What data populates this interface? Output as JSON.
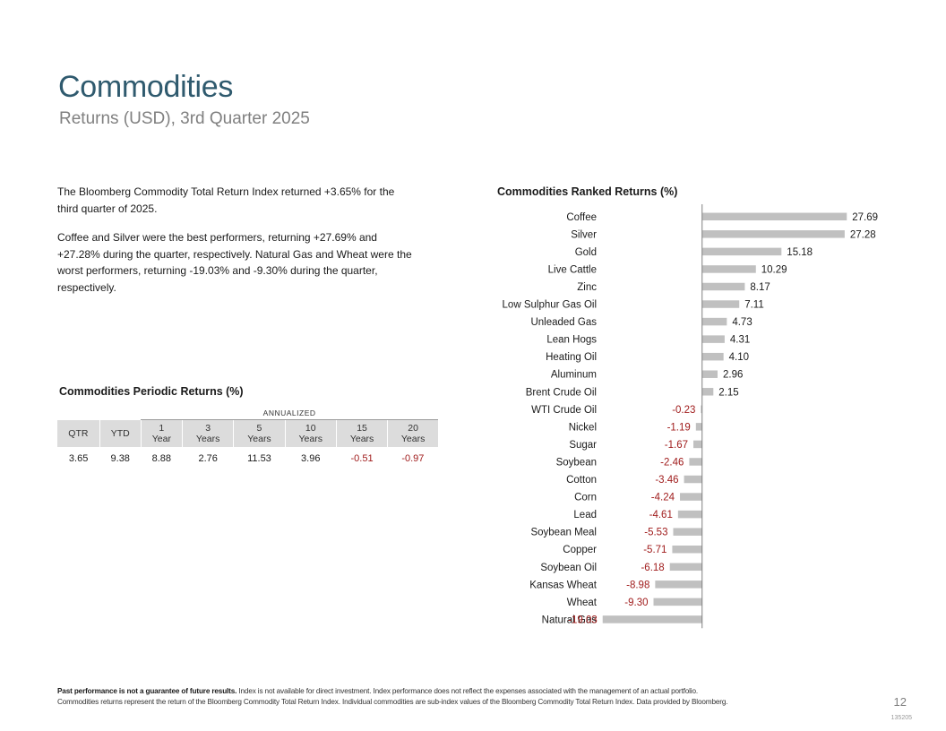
{
  "header": {
    "title": "Commodities",
    "subtitle": "Returns (USD), 3rd Quarter 2025"
  },
  "summary": {
    "para1": "The Bloomberg Commodity Total Return Index returned +3.65% for the third quarter of 2025.",
    "para2": "Coffee and Silver were the best performers, returning +27.69% and +27.28% during the quarter, respectively. Natural Gas and Wheat were the worst performers, returning -19.03% and -9.30% during the quarter, respectively."
  },
  "periodic": {
    "title": "Commodities Periodic Returns (%)",
    "annualized_label": "ANNUALIZED",
    "headers": [
      {
        "line1": "QTR",
        "line2": ""
      },
      {
        "line1": "YTD",
        "line2": ""
      },
      {
        "line1": "1",
        "line2": "Year"
      },
      {
        "line1": "3",
        "line2": "Years"
      },
      {
        "line1": "5",
        "line2": "Years"
      },
      {
        "line1": "10",
        "line2": "Years"
      },
      {
        "line1": "15",
        "line2": "Years"
      },
      {
        "line1": "20",
        "line2": "Years"
      }
    ],
    "values": [
      "3.65",
      "9.38",
      "8.88",
      "2.76",
      "11.53",
      "3.96",
      "-0.51",
      "-0.97"
    ]
  },
  "chart_data": {
    "type": "bar",
    "orientation": "horizontal",
    "title": "Commodities Ranked Returns (%)",
    "categories": [
      "Coffee",
      "Silver",
      "Gold",
      "Live Cattle",
      "Zinc",
      "Low Sulphur Gas Oil",
      "Unleaded Gas",
      "Lean Hogs",
      "Heating Oil",
      "Aluminum",
      "Brent Crude Oil",
      "WTI Crude Oil",
      "Nickel",
      "Sugar",
      "Soybean",
      "Cotton",
      "Corn",
      "Lead",
      "Soybean Meal",
      "Copper",
      "Soybean Oil",
      "Kansas Wheat",
      "Wheat",
      "Natural Gas"
    ],
    "values": [
      27.69,
      27.28,
      15.18,
      10.29,
      8.17,
      7.11,
      4.73,
      4.31,
      4.1,
      2.96,
      2.15,
      -0.23,
      -1.19,
      -1.67,
      -2.46,
      -3.46,
      -4.24,
      -4.61,
      -5.53,
      -5.71,
      -6.18,
      -8.98,
      -9.3,
      -19.03
    ],
    "labels": [
      "27.69",
      "27.28",
      "15.18",
      "10.29",
      "8.17",
      "7.11",
      "4.73",
      "4.31",
      "4.10",
      "2.96",
      "2.15",
      "-0.23",
      "-1.19",
      "-1.67",
      "-2.46",
      "-3.46",
      "-4.24",
      "-4.61",
      "-5.53",
      "-5.71",
      "-6.18",
      "-8.98",
      "-9.30",
      "-19.03"
    ],
    "xlim": [
      -19.5,
      28.5
    ],
    "colors": {
      "bar": "#c0c0c0",
      "negative_label": "#a01c1c",
      "positive_label": "#1a1a1a",
      "axis": "#808080"
    }
  },
  "footer": {
    "bold": "Past performance is not a guarantee of future results.",
    "line1": "Index is not available for direct investment. Index performance does not reflect the expenses associated with the management of an actual portfolio.",
    "line2": "Commodities returns represent the return of the Bloomberg Commodity Total Return Index. Individual commodities are sub-index values of the Bloomberg Commodity Total Return Index. Data provided by Bloomberg.",
    "page_number": "12",
    "doc_id": "135205"
  }
}
